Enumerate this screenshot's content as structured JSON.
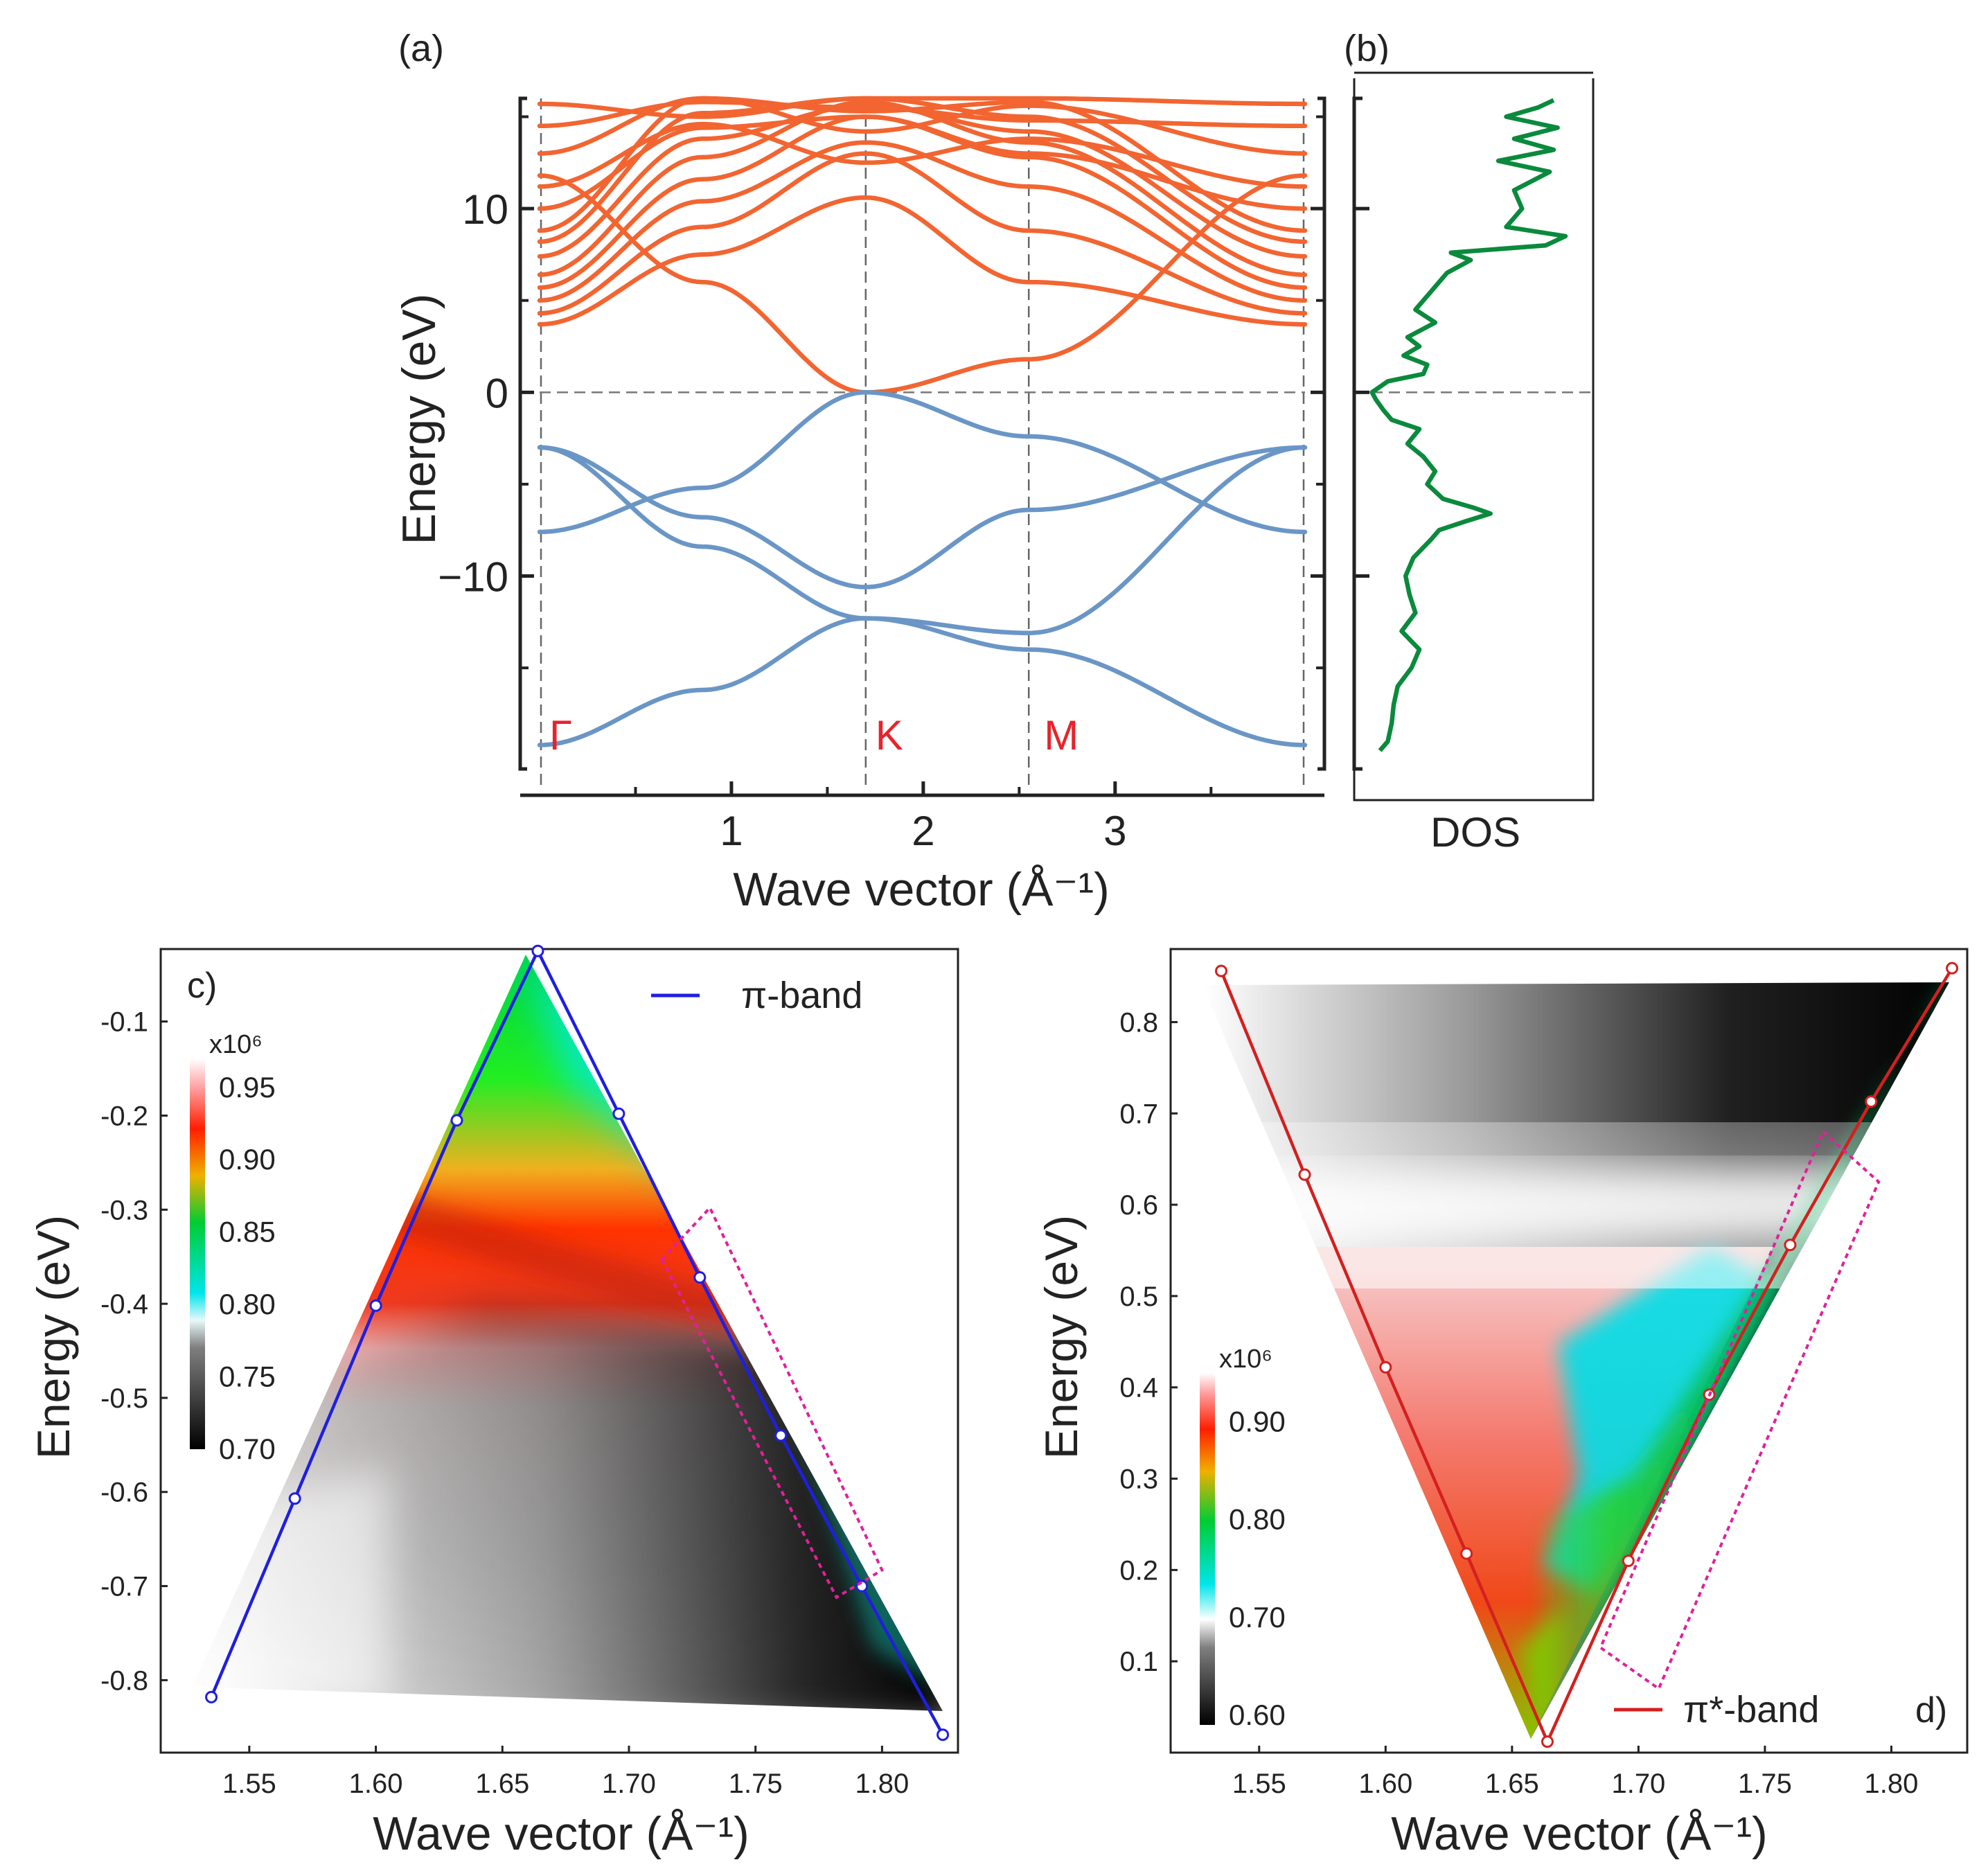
{
  "colors": {
    "conduction": "#F26531",
    "valence": "#6A96C6",
    "dos": "#0A8A3C",
    "kpoint": "#E8232A",
    "pi_band": "#1F1FE0",
    "pistar_band": "#D32020",
    "box": "#E0219A",
    "axis": "#222222"
  },
  "chart_data": [
    {
      "id": "a",
      "type": "line",
      "panel_label": "(a)",
      "xlabel": "Wave vector (Å⁻¹)",
      "ylabel": "Energy (eV)",
      "xlim": [
        0,
        3.99
      ],
      "ylim": [
        -20.5,
        16
      ],
      "xticks": [
        {
          "v": 1,
          "label": "1"
        },
        {
          "v": 2,
          "label": "2"
        },
        {
          "v": 3,
          "label": "3"
        }
      ],
      "yticks": [
        {
          "v": 10,
          "label": "10"
        },
        {
          "v": 0,
          "label": "0"
        },
        {
          "v": -10,
          "label": "−10"
        }
      ],
      "kpoints": [
        {
          "label": "Γ",
          "x": 0
        },
        {
          "label": "K",
          "x": 1.7
        },
        {
          "label": "M",
          "x": 2.55
        }
      ],
      "fermi_level": 0,
      "conduction_bands": [
        {
          "name": "c1",
          "x": [
            0,
            0.85,
            1.7,
            2.55,
            3.99
          ],
          "y": [
            11.8,
            6.0,
            0,
            1.8,
            11.8
          ]
        },
        {
          "name": "c2",
          "x": [
            0,
            0.85,
            1.7,
            2.55,
            3.99
          ],
          "y": [
            3.7,
            7.5,
            10.6,
            6.0,
            3.7
          ]
        },
        {
          "name": "c3",
          "x": [
            0,
            0.85,
            1.7,
            2.55,
            3.99
          ],
          "y": [
            4.3,
            9.0,
            13.0,
            8.8,
            4.3
          ]
        },
        {
          "name": "c4",
          "x": [
            0,
            0.85,
            1.7,
            2.55,
            3.99
          ],
          "y": [
            5.0,
            10.4,
            13.6,
            11.2,
            5.0
          ]
        },
        {
          "name": "c5",
          "x": [
            0,
            0.85,
            1.7,
            2.55,
            3.99
          ],
          "y": [
            5.7,
            11.6,
            15.0,
            12.8,
            5.7
          ]
        },
        {
          "name": "c6",
          "x": [
            0,
            0.85,
            1.7,
            2.55,
            3.99
          ],
          "y": [
            6.4,
            12.8,
            15.8,
            13.6,
            6.4
          ]
        },
        {
          "name": "c7",
          "x": [
            0,
            0.85,
            1.7,
            2.55,
            3.99
          ],
          "y": [
            7.4,
            13.8,
            15.6,
            14.2,
            7.4
          ]
        },
        {
          "name": "c8",
          "x": [
            0,
            0.85,
            1.7,
            2.55,
            3.99
          ],
          "y": [
            8.2,
            15.2,
            16.0,
            15.0,
            8.2
          ]
        },
        {
          "name": "c9",
          "x": [
            0,
            0.85,
            1.7,
            2.55,
            3.99
          ],
          "y": [
            8.8,
            16.0,
            15.3,
            15.8,
            8.8
          ]
        },
        {
          "name": "c10",
          "x": [
            0,
            0.85,
            1.7,
            2.55,
            3.99
          ],
          "y": [
            10.0,
            14.4,
            15.0,
            13.0,
            10.0
          ]
        },
        {
          "name": "c11",
          "x": [
            0,
            0.85,
            1.7,
            2.55,
            3.99
          ],
          "y": [
            11.2,
            14.6,
            12.5,
            13.8,
            11.2
          ]
        },
        {
          "name": "c12",
          "x": [
            0,
            0.85,
            1.7,
            2.55,
            3.99
          ],
          "y": [
            13.0,
            16.0,
            14.2,
            15.6,
            13.0
          ]
        },
        {
          "name": "c13",
          "x": [
            0,
            0.85,
            1.7,
            2.55,
            3.99
          ],
          "y": [
            14.5,
            15.8,
            15.5,
            14.8,
            14.5
          ]
        },
        {
          "name": "c14",
          "x": [
            0,
            0.85,
            1.7,
            2.55,
            3.99
          ],
          "y": [
            15.7,
            15.0,
            16.0,
            16.0,
            15.7
          ]
        }
      ],
      "valence_bands": [
        {
          "name": "v1",
          "x": [
            0,
            0.85,
            1.7,
            2.55,
            3.99
          ],
          "y": [
            -7.6,
            -5.2,
            0,
            -2.4,
            -7.6
          ]
        },
        {
          "name": "v2",
          "x": [
            0,
            0.85,
            1.7,
            2.55,
            3.99
          ],
          "y": [
            -3.0,
            -6.8,
            -10.6,
            -6.4,
            -3.0
          ]
        },
        {
          "name": "v3",
          "x": [
            0,
            0.85,
            1.7,
            2.55,
            3.99
          ],
          "y": [
            -3.0,
            -8.4,
            -12.3,
            -13.1,
            -3.0
          ]
        },
        {
          "name": "v4",
          "x": [
            0,
            0.85,
            1.7,
            2.55,
            3.99
          ],
          "y": [
            -19.2,
            -16.2,
            -12.3,
            -14.0,
            -19.2
          ]
        }
      ]
    },
    {
      "id": "b",
      "type": "line",
      "panel_label": "(b)",
      "xlabel": "DOS",
      "ylim": [
        -20.5,
        16
      ],
      "series": [
        {
          "name": "DOS",
          "energy": [
            -19.5,
            -19.0,
            -18.0,
            -17.0,
            -16.0,
            -15.0,
            -14.0,
            -13.0,
            -12.0,
            -11.0,
            -10.0,
            -9.0,
            -8.0,
            -7.5,
            -7.0,
            -6.6,
            -6.3,
            -5.8,
            -5.0,
            -4.3,
            -3.5,
            -2.8,
            -2.0,
            -1.5,
            -1.0,
            -0.4,
            0.0,
            0.6,
            1.0,
            1.5,
            2.0,
            2.5,
            3.0,
            3.8,
            4.5,
            5.5,
            6.5,
            7.2,
            7.6,
            8.0,
            8.5,
            9.0,
            10.0,
            11.0,
            12.0,
            12.6,
            13.2,
            13.8,
            14.4,
            15.0,
            15.5,
            15.9
          ],
          "dos": [
            0.06,
            0.1,
            0.12,
            0.13,
            0.15,
            0.22,
            0.26,
            0.17,
            0.24,
            0.21,
            0.19,
            0.23,
            0.32,
            0.36,
            0.5,
            0.62,
            0.54,
            0.38,
            0.3,
            0.34,
            0.28,
            0.2,
            0.26,
            0.12,
            0.08,
            0.04,
            0.02,
            0.1,
            0.28,
            0.3,
            0.18,
            0.26,
            0.2,
            0.34,
            0.24,
            0.32,
            0.4,
            0.52,
            0.42,
            0.9,
            1.0,
            0.7,
            0.78,
            0.74,
            0.92,
            0.66,
            0.94,
            0.74,
            0.96,
            0.7,
            0.86,
            0.94
          ]
        }
      ]
    },
    {
      "id": "c",
      "type": "heatmap",
      "panel_label": "c)",
      "xlabel": "Wave vector (Å⁻¹)",
      "ylabel": "Energy (eV)",
      "xlim": [
        1.515,
        1.83
      ],
      "ylim": [
        -0.877,
        -0.023
      ],
      "xticks": [
        1.55,
        1.6,
        1.65,
        1.7,
        1.75,
        1.8
      ],
      "xtick_labels": [
        "1.55",
        "1.60",
        "1.65",
        "1.70",
        "1.75",
        "1.80"
      ],
      "yticks": [
        -0.1,
        -0.2,
        -0.3,
        -0.4,
        -0.5,
        -0.6,
        -0.7,
        -0.8
      ],
      "ytick_labels": [
        "-0.1",
        "-0.2",
        "-0.3",
        "-0.4",
        "-0.5",
        "-0.6",
        "-0.7",
        "-0.8"
      ],
      "legend": "π-band",
      "colorbar": {
        "multiplier": "x10⁶",
        "range": [
          0.7,
          0.97
        ],
        "ticks": [
          0.95,
          0.9,
          0.85,
          0.8,
          0.75,
          0.7
        ],
        "tick_labels": [
          "0.95",
          "0.90",
          "0.85",
          "0.80",
          "0.75",
          "0.70"
        ]
      },
      "band_points": {
        "x": [
          1.535,
          1.568,
          1.6,
          1.632,
          1.664,
          1.696,
          1.728,
          1.76,
          1.792,
          1.824
        ],
        "y": [
          -0.818,
          -0.607,
          -0.402,
          -0.205,
          -0.025,
          -0.198,
          -0.372,
          -0.54,
          -0.7,
          -0.858
        ]
      },
      "highlight_box": [
        [
          1.713,
          -0.353
        ],
        [
          1.732,
          -0.298
        ],
        [
          1.8,
          -0.683
        ],
        [
          1.782,
          -0.712
        ]
      ]
    },
    {
      "id": "d",
      "type": "heatmap",
      "panel_label": "d)",
      "xlabel": "Wave vector (Å⁻¹)",
      "ylabel": "Energy (eV)",
      "xlim": [
        1.515,
        1.83
      ],
      "ylim": [
        0.0,
        0.88
      ],
      "xticks": [
        1.55,
        1.6,
        1.65,
        1.7,
        1.75,
        1.8
      ],
      "xtick_labels": [
        "1.55",
        "1.60",
        "1.65",
        "1.70",
        "1.75",
        "1.80"
      ],
      "yticks": [
        0.1,
        0.2,
        0.3,
        0.4,
        0.5,
        0.6,
        0.7,
        0.8
      ],
      "ytick_labels": [
        "0.1",
        "0.2",
        "0.3",
        "0.4",
        "0.5",
        "0.6",
        "0.7",
        "0.8"
      ],
      "legend": "π*-band",
      "colorbar": {
        "multiplier": "x10⁶",
        "range": [
          0.59,
          0.95
        ],
        "ticks": [
          0.9,
          0.8,
          0.7,
          0.6
        ],
        "tick_labels": [
          "0.90",
          "0.80",
          "0.70",
          "0.60"
        ]
      },
      "band_points": {
        "x": [
          1.535,
          1.568,
          1.6,
          1.632,
          1.664,
          1.696,
          1.728,
          1.76,
          1.792,
          1.824
        ],
        "y": [
          0.856,
          0.633,
          0.422,
          0.218,
          0.012,
          0.21,
          0.392,
          0.556,
          0.713,
          0.859
        ]
      },
      "highlight_box": [
        [
          1.773,
          0.68
        ],
        [
          1.795,
          0.625
        ],
        [
          1.708,
          0.07
        ],
        [
          1.685,
          0.115
        ]
      ]
    }
  ]
}
